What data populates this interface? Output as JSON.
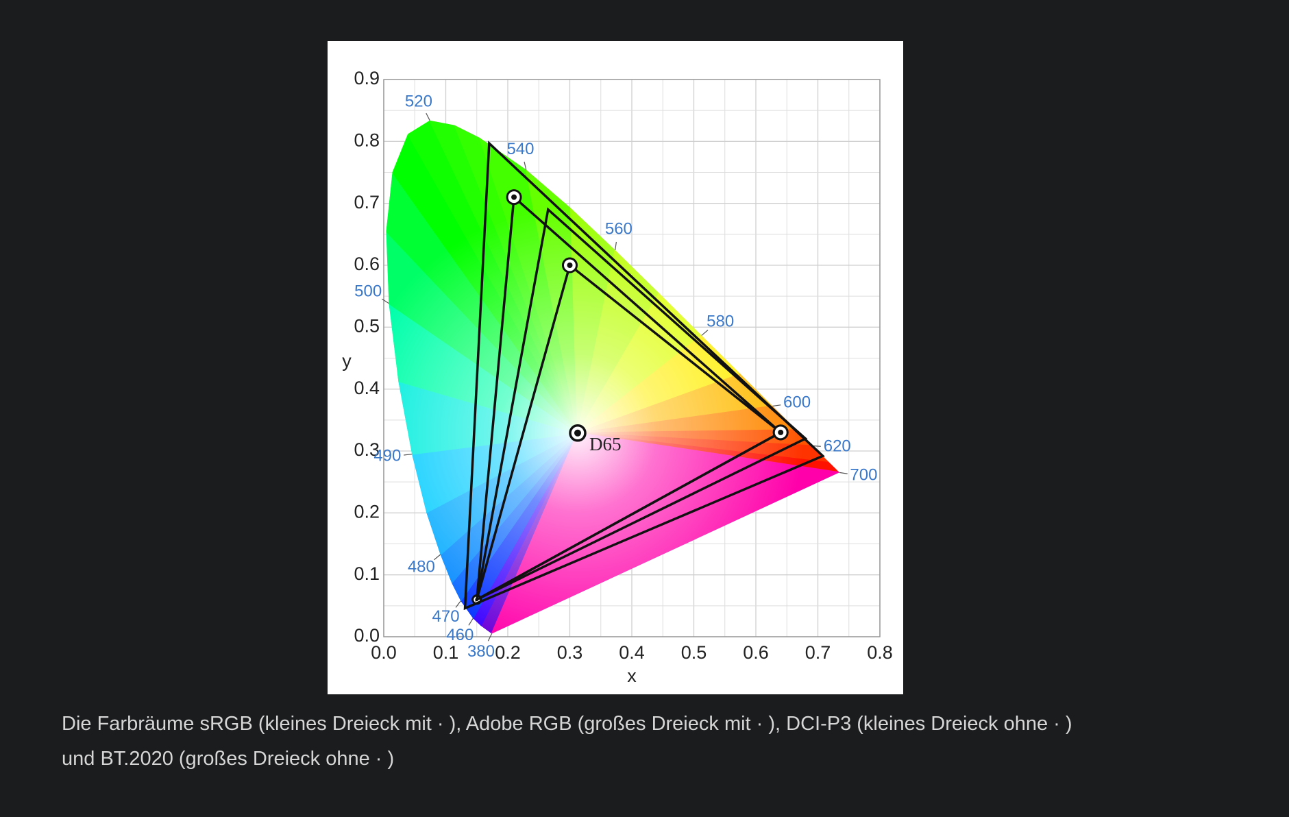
{
  "chart_data": {
    "type": "chromaticity",
    "xlabel": "x",
    "ylabel": "y",
    "xlim": [
      0,
      0.8
    ],
    "ylim": [
      0,
      0.9
    ],
    "xticks": [
      {
        "value": 0,
        "label": "0.0"
      },
      0.1,
      0.2,
      0.3,
      0.4,
      0.5,
      0.6,
      0.7,
      0.8
    ],
    "yticks": [
      {
        "value": 0,
        "label": "0.0"
      },
      0.1,
      0.2,
      0.3,
      0.4,
      0.5,
      0.6,
      0.7,
      0.8,
      0.9
    ],
    "grid": true,
    "minor_grid": true,
    "locus": {
      "x": [
        0.1741,
        0.1566,
        0.144,
        0.1241,
        0.1096,
        0.0913,
        0.0687,
        0.0454,
        0.0235,
        0.0082,
        0.0039,
        0.0139,
        0.0389,
        0.0743,
        0.1142,
        0.1547,
        0.2296,
        0.3016,
        0.3731,
        0.4441,
        0.5125,
        0.5752,
        0.627,
        0.6658,
        0.6915,
        0.719,
        0.7347
      ],
      "y": [
        0.005,
        0.0177,
        0.0297,
        0.0578,
        0.0868,
        0.1327,
        0.2007,
        0.295,
        0.4127,
        0.5384,
        0.6548,
        0.7502,
        0.812,
        0.8338,
        0.8262,
        0.8059,
        0.7543,
        0.6923,
        0.6245,
        0.5547,
        0.4866,
        0.4242,
        0.3725,
        0.334,
        0.3083,
        0.2809,
        0.2653
      ],
      "colors": [
        "#6a00d8",
        "#3a00ff",
        "#0030ff",
        "#0062ff",
        "#0088ff",
        "#00aaff",
        "#00ccff",
        "#00eedd",
        "#00ffaa",
        "#00ff66",
        "#00ff33",
        "#00ff00",
        "#10ff00",
        "#22ff00",
        "#33ff00",
        "#44ff00",
        "#66ff00",
        "#99ff00",
        "#bbff00",
        "#ddff00",
        "#ffee00",
        "#ffbb00",
        "#ff8800",
        "#ff5500",
        "#ff3300",
        "#ff1100",
        "#ff0022"
      ],
      "line_of_purples_color": "#ff00aa"
    },
    "wavelength_labels": [
      {
        "wavelength": 520,
        "x": 0.0743,
        "y": 0.8338
      },
      {
        "wavelength": 540,
        "x": 0.2296,
        "y": 0.7543
      },
      {
        "wavelength": 560,
        "x": 0.3731,
        "y": 0.6245
      },
      {
        "wavelength": 580,
        "x": 0.5125,
        "y": 0.4866
      },
      {
        "wavelength": 600,
        "x": 0.627,
        "y": 0.3725
      },
      {
        "wavelength": 620,
        "x": 0.6915,
        "y": 0.3083
      },
      {
        "wavelength": 700,
        "x": 0.7347,
        "y": 0.2653
      },
      {
        "wavelength": 500,
        "x": 0.0082,
        "y": 0.5384
      },
      {
        "wavelength": 490,
        "x": 0.0454,
        "y": 0.295
      },
      {
        "wavelength": 480,
        "x": 0.0913,
        "y": 0.1327
      },
      {
        "wavelength": 470,
        "x": 0.1241,
        "y": 0.0578
      },
      {
        "wavelength": 460,
        "x": 0.144,
        "y": 0.0297
      },
      {
        "wavelength": 380,
        "x": 0.1741,
        "y": 0.005
      }
    ],
    "gamuts": [
      {
        "x": [
          0.64,
          0.3,
          0.15
        ],
        "y": [
          0.33,
          0.6,
          0.06
        ],
        "markers": true
      },
      {
        "x": [
          0.64,
          0.21,
          0.15
        ],
        "y": [
          0.33,
          0.71,
          0.06
        ],
        "markers": true
      },
      {
        "x": [
          0.68,
          0.265,
          0.15
        ],
        "y": [
          0.32,
          0.69,
          0.06
        ],
        "markers": false
      },
      {
        "x": [
          0.708,
          0.17,
          0.131
        ],
        "y": [
          0.292,
          0.797,
          0.046
        ],
        "markers": false
      }
    ],
    "white_point": {
      "label": "D65",
      "x": 0.3127,
      "y": 0.329
    },
    "line_color": "#111111"
  },
  "caption": [
    "Die Farbräume sRGB (kleines Dreieck mit · ), Adobe RGB (großes Dreieck mit · ), DCI-P3 (kleines Dreieck ohne · )",
    "und BT.2020 (großes Dreieck ohne · )"
  ]
}
